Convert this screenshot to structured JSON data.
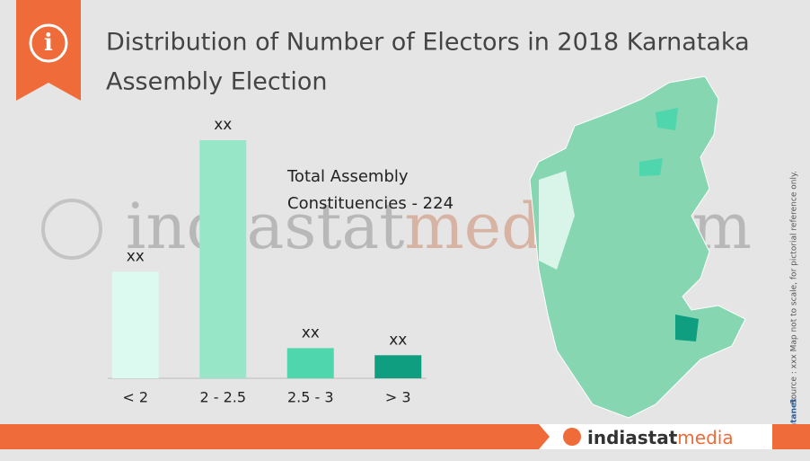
{
  "chart_data": {
    "type": "bar",
    "title": "Distribution of Number of Electors in 2018 Karnataka Assembly Election",
    "annotation": "Total Assembly Constituencies - 224",
    "categories": [
      "< 2",
      "2 - 2.5",
      "2.5 - 3",
      "> 3"
    ],
    "values": [
      60,
      134,
      17,
      13
    ],
    "value_labels": [
      "xx",
      "xx",
      "xx",
      "xx"
    ],
    "colors": [
      "#dcfaf0",
      "#98e6c8",
      "#4fd6ac",
      "#0f9e80"
    ]
  },
  "watermark": {
    "part1": "indiastat",
    "part2": "media",
    "part3": ".com"
  },
  "side_note": "Source : xxx   Map not to scale, for pictorial reference only.",
  "credit": "© Datanet",
  "footer_logo": {
    "part1": "indiastat",
    "part2": "media"
  }
}
